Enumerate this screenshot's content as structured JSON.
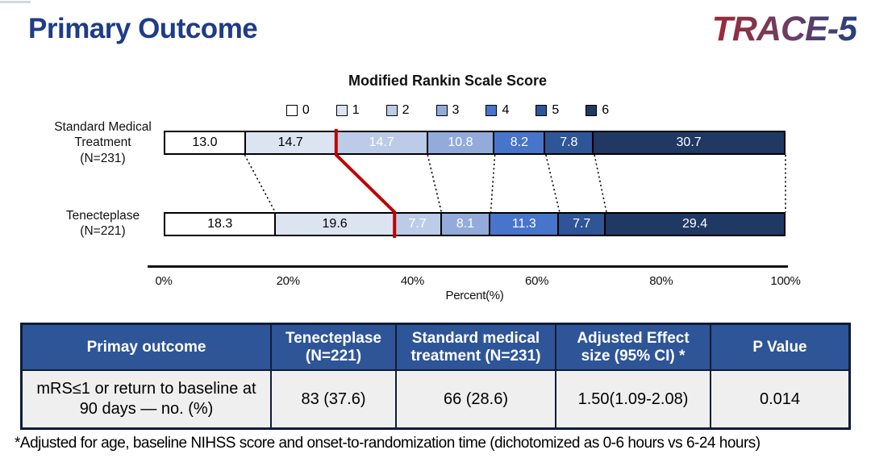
{
  "slide": {
    "title": "Primary Outcome",
    "logo": "TRACE-5",
    "footnote": "*Adjusted for age, baseline NIHSS score and onset-to-randomization time (dichotomized as 0-6 hours vs 6-24 hours)"
  },
  "colors": {
    "title_blue": "#1e3c87",
    "table_header_bg": "#2e5597",
    "table_body_bg": "#efefef",
    "red_cutoff_line": "#c00000",
    "logo_gradient": [
      "#9e2a35",
      "#6a3f63",
      "#27407c"
    ]
  },
  "chart_data": {
    "type": "bar",
    "variant": "horizontal-stacked-percent",
    "title": "Modified Rankin Scale Score",
    "xlabel": "Percent(%)",
    "x_ticks": [
      "0%",
      "20%",
      "40%",
      "60%",
      "80%",
      "100%"
    ],
    "xlim": [
      0,
      100
    ],
    "grid": false,
    "legend_position": "top",
    "categories": [
      "0",
      "1",
      "2",
      "3",
      "4",
      "5",
      "6"
    ],
    "segment_colors": [
      "#FFFFFF",
      "#DCE4F2",
      "#BCCCE8",
      "#92ABDB",
      "#4775CB",
      "#2E5597",
      "#1F3864"
    ],
    "series": [
      {
        "name": "Standard Medical Treatment",
        "n_label": "(N=231)",
        "values": [
          13.0,
          14.7,
          14.7,
          10.8,
          8.2,
          7.8,
          30.7
        ]
      },
      {
        "name": "Tenecteplase",
        "n_label": "(N=221)",
        "values": [
          18.3,
          19.6,
          7.7,
          8.1,
          11.3,
          7.7,
          29.4
        ]
      }
    ],
    "annotations": {
      "red_cutoff_after_category": "1",
      "dotted_connectors_between_bars": true
    }
  },
  "table": {
    "headers": [
      "Primay outcome",
      "Tenecteplase (N=221)",
      "Standard medical treatment (N=231)",
      "Adjusted Effect size (95% CI) *",
      "P Value"
    ],
    "rows": [
      [
        "mRS≤1 or return to baseline at 90 days — no. (%)",
        "83 (37.6)",
        "66 (28.6)",
        "1.50(1.09-2.08)",
        "0.014"
      ]
    ]
  }
}
